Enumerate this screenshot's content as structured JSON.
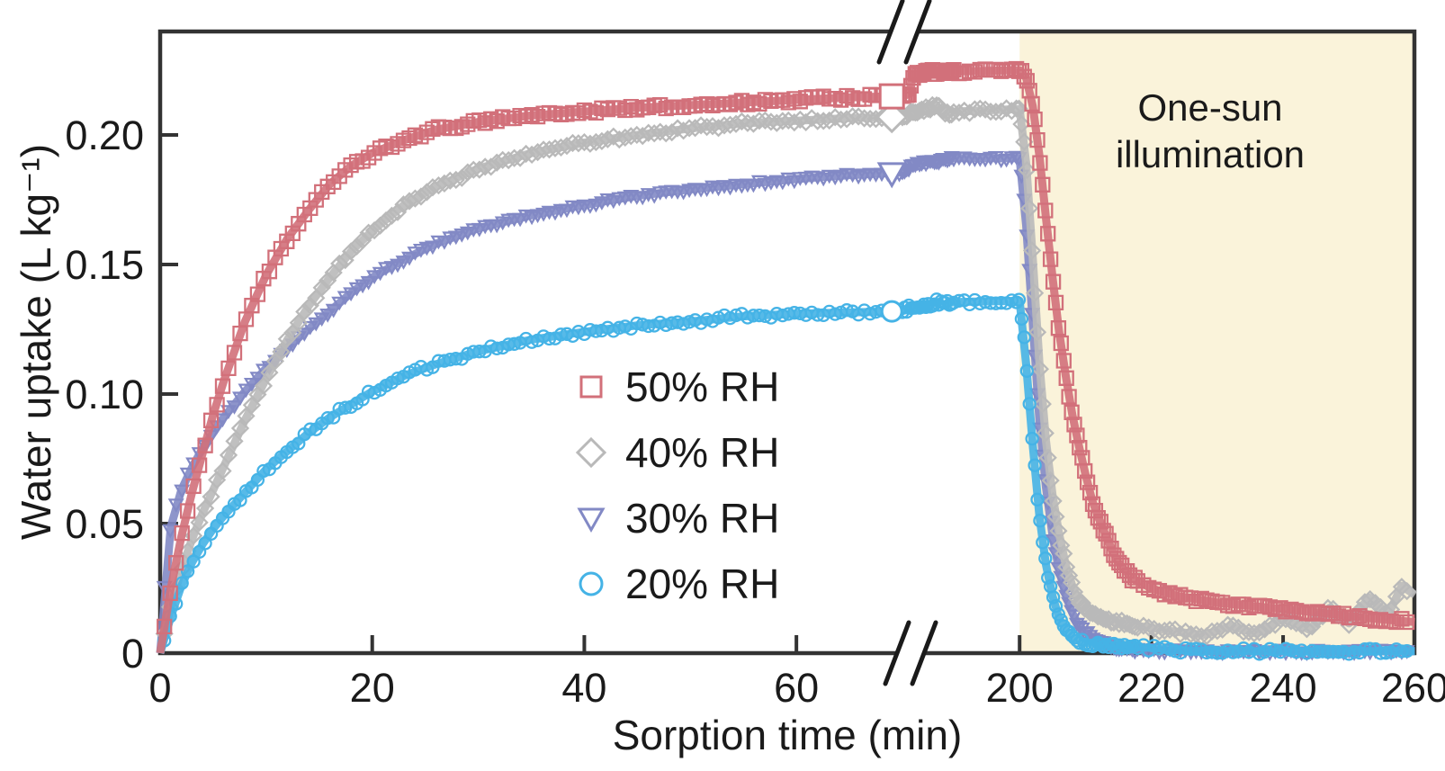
{
  "figure": {
    "x_axis_title": "Sorption time (min)",
    "y_axis_title": "Water uptake (L kg⁻¹)",
    "annotation": {
      "line1": "One-sun",
      "line2": "illumination"
    },
    "axis_color": "#333333",
    "text_color": "#1a1a1a",
    "background_color": "#ffffff"
  },
  "chart_data": {
    "type": "scatter",
    "title": "",
    "xlabel": "Sorption time (min)",
    "ylabel": "Water uptake (L kg⁻¹)",
    "grid": false,
    "legend_position": "center-left inside plot",
    "x_axis": {
      "segments": [
        {
          "range": [
            0,
            70
          ],
          "tick_values": [
            0,
            20,
            40,
            60
          ],
          "tick_labels": [
            "0",
            "20",
            "40",
            "60"
          ]
        },
        {
          "range": [
            190,
            260
          ],
          "tick_values": [
            200,
            220,
            240,
            260
          ],
          "tick_labels": [
            "200",
            "220",
            "240",
            "260"
          ]
        }
      ],
      "break_between": [
        70,
        190
      ],
      "unit": "min"
    },
    "y_axis": {
      "range": [
        0,
        0.24
      ],
      "tick_values": [
        0,
        0.05,
        0.1,
        0.15,
        0.2
      ],
      "tick_labels": [
        "0",
        "0.05",
        "0.10",
        "0.15",
        "0.20"
      ],
      "unit": "L kg⁻¹"
    },
    "shaded_region": {
      "label": "One-sun illumination",
      "x_start": 200,
      "x_end": 260,
      "color": "#faf3da"
    },
    "highlight_marker_time": 69,
    "series": [
      {
        "label": "30% RH",
        "marker": "triangle-down",
        "color": "#8289c5",
        "size": 7,
        "jitter": 2.0,
        "points": [
          [
            0,
            0
          ],
          [
            0.4,
            0.025
          ],
          [
            0.8,
            0.045
          ],
          [
            1.5,
            0.058
          ],
          [
            2.5,
            0.068
          ],
          [
            4,
            0.079
          ],
          [
            5,
            0.085
          ],
          [
            6,
            0.091
          ],
          [
            8,
            0.101
          ],
          [
            10,
            0.11
          ],
          [
            12,
            0.118
          ],
          [
            14,
            0.125
          ],
          [
            16,
            0.132
          ],
          [
            18,
            0.139
          ],
          [
            20,
            0.145
          ],
          [
            23,
            0.152
          ],
          [
            26,
            0.158
          ],
          [
            30,
            0.164
          ],
          [
            35,
            0.169
          ],
          [
            40,
            0.173
          ],
          [
            45,
            0.1765
          ],
          [
            50,
            0.179
          ],
          [
            55,
            0.181
          ],
          [
            60,
            0.183
          ],
          [
            65,
            0.1845
          ],
          [
            70,
            0.1855
          ],
          [
            90,
            0.188
          ],
          [
            110,
            0.189
          ],
          [
            130,
            0.1895
          ],
          [
            150,
            0.19
          ],
          [
            175,
            0.1905
          ],
          [
            190,
            0.191
          ],
          [
            200,
            0.191
          ],
          [
            200.8,
            0.172
          ],
          [
            201.5,
            0.148
          ],
          [
            202,
            0.127
          ],
          [
            202.5,
            0.107
          ],
          [
            203,
            0.09
          ],
          [
            203.5,
            0.076
          ],
          [
            204,
            0.064
          ],
          [
            205,
            0.0455
          ],
          [
            206,
            0.032
          ],
          [
            207,
            0.0225
          ],
          [
            208,
            0.0155
          ],
          [
            209,
            0.0105
          ],
          [
            211,
            0.006
          ],
          [
            214,
            0.0025
          ],
          [
            218,
            0.001
          ],
          [
            230,
            0.0008
          ],
          [
            260,
            0.0008
          ]
        ]
      },
      {
        "label": "40% RH",
        "marker": "diamond",
        "color": "#b9b9b9",
        "size": 8.5,
        "jitter": 2.5,
        "points": [
          [
            0,
            0
          ],
          [
            1,
            0.018
          ],
          [
            2,
            0.032
          ],
          [
            3,
            0.044
          ],
          [
            4,
            0.054
          ],
          [
            5,
            0.063
          ],
          [
            6,
            0.072
          ],
          [
            7,
            0.081
          ],
          [
            8,
            0.09
          ],
          [
            10,
            0.106
          ],
          [
            12,
            0.121
          ],
          [
            14,
            0.134
          ],
          [
            16,
            0.145
          ],
          [
            18,
            0.155
          ],
          [
            20,
            0.163
          ],
          [
            23,
            0.173
          ],
          [
            26,
            0.18
          ],
          [
            30,
            0.187
          ],
          [
            35,
            0.193
          ],
          [
            40,
            0.197
          ],
          [
            45,
            0.2
          ],
          [
            50,
            0.2025
          ],
          [
            55,
            0.2045
          ],
          [
            60,
            0.2055
          ],
          [
            65,
            0.2065
          ],
          [
            70,
            0.207
          ],
          [
            90,
            0.2085
          ],
          [
            110,
            0.2095
          ],
          [
            130,
            0.2105
          ],
          [
            150,
            0.211
          ],
          [
            165,
            0.2095
          ],
          [
            175,
            0.2085
          ],
          [
            185,
            0.2085
          ],
          [
            195,
            0.2095
          ],
          [
            200,
            0.21
          ],
          [
            200.8,
            0.196
          ],
          [
            201.5,
            0.172
          ],
          [
            202,
            0.152
          ],
          [
            202.5,
            0.131
          ],
          [
            203,
            0.112
          ],
          [
            203.5,
            0.096
          ],
          [
            204,
            0.082
          ],
          [
            205,
            0.061
          ],
          [
            206,
            0.046
          ],
          [
            207,
            0.034
          ],
          [
            208,
            0.026
          ],
          [
            209,
            0.02
          ],
          [
            211,
            0.0155
          ],
          [
            214,
            0.0125
          ],
          [
            218,
            0.0105
          ],
          [
            223,
            0.0085
          ],
          [
            228,
            0.007
          ],
          [
            232,
            0.0105
          ],
          [
            236,
            0.0075
          ],
          [
            240,
            0.0135
          ],
          [
            244,
            0.009
          ],
          [
            247,
            0.0175
          ],
          [
            250,
            0.0115
          ],
          [
            253,
            0.0215
          ],
          [
            256,
            0.015
          ],
          [
            258,
            0.026
          ],
          [
            260,
            0.0225
          ]
        ]
      },
      {
        "label": "20% RH",
        "marker": "circle",
        "color": "#45b3e6",
        "size": 6.5,
        "jitter": 3.2,
        "points": [
          [
            0,
            0
          ],
          [
            1,
            0.014
          ],
          [
            2,
            0.026
          ],
          [
            3,
            0.035
          ],
          [
            4,
            0.042
          ],
          [
            5,
            0.048
          ],
          [
            6,
            0.053
          ],
          [
            8,
            0.062
          ],
          [
            10,
            0.071
          ],
          [
            12,
            0.078
          ],
          [
            14,
            0.085
          ],
          [
            16,
            0.091
          ],
          [
            18,
            0.096
          ],
          [
            20,
            0.101
          ],
          [
            23,
            0.107
          ],
          [
            26,
            0.1115
          ],
          [
            30,
            0.1165
          ],
          [
            35,
            0.121
          ],
          [
            40,
            0.124
          ],
          [
            45,
            0.1265
          ],
          [
            50,
            0.128
          ],
          [
            55,
            0.13
          ],
          [
            60,
            0.131
          ],
          [
            65,
            0.1315
          ],
          [
            70,
            0.132
          ],
          [
            90,
            0.1335
          ],
          [
            110,
            0.134
          ],
          [
            130,
            0.1345
          ],
          [
            150,
            0.1355
          ],
          [
            165,
            0.1345
          ],
          [
            175,
            0.135
          ],
          [
            190,
            0.1355
          ],
          [
            200,
            0.136
          ],
          [
            200.7,
            0.121
          ],
          [
            201.3,
            0.102
          ],
          [
            202,
            0.08
          ],
          [
            202.7,
            0.06
          ],
          [
            203.4,
            0.0435
          ],
          [
            204.2,
            0.031
          ],
          [
            205,
            0.022
          ],
          [
            206,
            0.0135
          ],
          [
            207,
            0.0085
          ],
          [
            208,
            0.006
          ],
          [
            210,
            0.004
          ],
          [
            214,
            0.003
          ],
          [
            220,
            0.002
          ],
          [
            224,
            0.0012
          ],
          [
            228,
            0.0008
          ],
          [
            260,
            0.0008
          ]
        ]
      },
      {
        "label": "50% RH",
        "marker": "square",
        "color": "#d2707a",
        "size": 7.5,
        "jitter": 2.5,
        "points": [
          [
            0,
            0
          ],
          [
            1,
            0.025
          ],
          [
            2,
            0.045
          ],
          [
            3,
            0.062
          ],
          [
            4,
            0.077
          ],
          [
            5,
            0.092
          ],
          [
            6,
            0.105
          ],
          [
            8,
            0.128
          ],
          [
            10,
            0.146
          ],
          [
            12,
            0.16
          ],
          [
            14,
            0.171
          ],
          [
            16,
            0.181
          ],
          [
            18,
            0.188
          ],
          [
            20,
            0.193
          ],
          [
            23,
            0.198
          ],
          [
            26,
            0.202
          ],
          [
            30,
            0.205
          ],
          [
            35,
            0.2075
          ],
          [
            40,
            0.209
          ],
          [
            45,
            0.2105
          ],
          [
            50,
            0.2115
          ],
          [
            55,
            0.2125
          ],
          [
            60,
            0.2135
          ],
          [
            65,
            0.2145
          ],
          [
            70,
            0.215
          ],
          [
            80,
            0.2155
          ],
          [
            88,
            0.216
          ],
          [
            93,
            0.2225
          ],
          [
            100,
            0.2235
          ],
          [
            120,
            0.224
          ],
          [
            160,
            0.2245
          ],
          [
            190,
            0.2245
          ],
          [
            200,
            0.225
          ],
          [
            201,
            0.222
          ],
          [
            202,
            0.211
          ],
          [
            203,
            0.192
          ],
          [
            204,
            0.168
          ],
          [
            205,
            0.145
          ],
          [
            206,
            0.124
          ],
          [
            207,
            0.107
          ],
          [
            208,
            0.092
          ],
          [
            209,
            0.08
          ],
          [
            210,
            0.069
          ],
          [
            211,
            0.059
          ],
          [
            212,
            0.052
          ],
          [
            213,
            0.046
          ],
          [
            214,
            0.04
          ],
          [
            215,
            0.035
          ],
          [
            217,
            0.029
          ],
          [
            220,
            0.025
          ],
          [
            224,
            0.022
          ],
          [
            230,
            0.0195
          ],
          [
            238,
            0.0175
          ],
          [
            246,
            0.0155
          ],
          [
            253,
            0.0135
          ],
          [
            260,
            0.012
          ]
        ]
      }
    ],
    "legend_order": [
      "50% RH",
      "40% RH",
      "30% RH",
      "20% RH"
    ]
  }
}
